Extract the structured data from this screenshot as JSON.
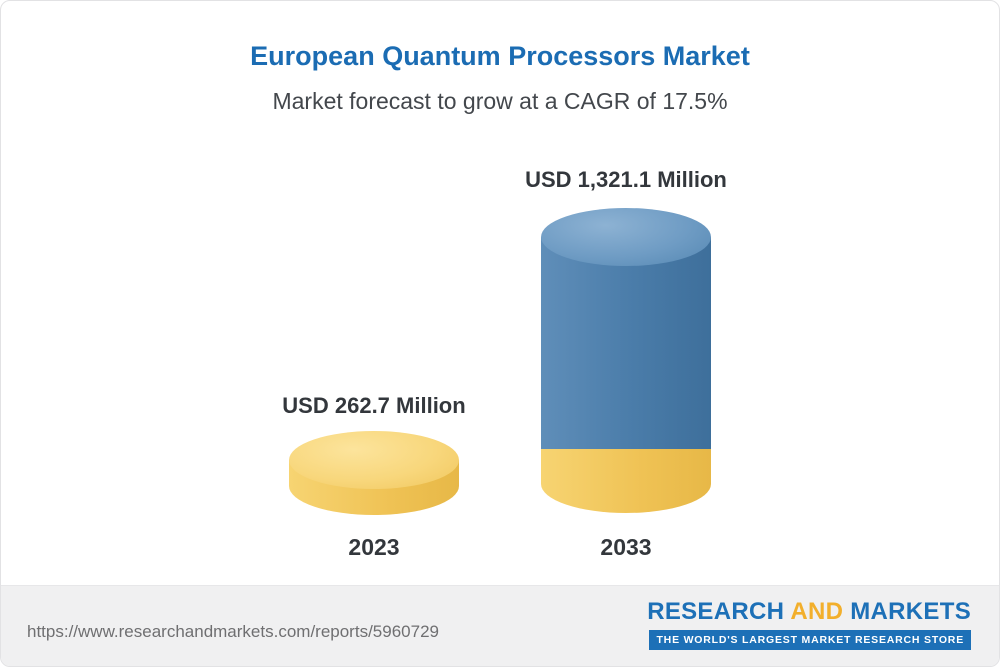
{
  "header": {
    "title": "European Quantum Processors Market",
    "subtitle": "Market forecast to grow at a CAGR of 17.5%"
  },
  "chart_data": {
    "type": "bar",
    "title": "European Quantum Processors Market",
    "subtitle": "Market forecast to grow at a CAGR of 17.5%",
    "cagr_percent": 17.5,
    "unit": "USD Million",
    "categories": [
      "2023",
      "2033"
    ],
    "values": [
      262.7,
      1321.1
    ],
    "value_labels": [
      "USD 262.7 Million",
      "USD 1,321.1 Million"
    ],
    "legend_position": "none",
    "grid": false,
    "colors": {
      "bar_2023": "#f0c65c",
      "bar_2033": "#4a7ca9",
      "bar_2033_base_segment": "#f0c65c",
      "title_accent": "#1b6cb3"
    }
  },
  "footer": {
    "url": "https://www.researchandmarkets.com/reports/5960729",
    "logo": {
      "word1": "RESEARCH",
      "word2": "AND",
      "word3": "MARKETS",
      "tagline": "THE WORLD'S LARGEST MARKET RESEARCH STORE"
    }
  }
}
